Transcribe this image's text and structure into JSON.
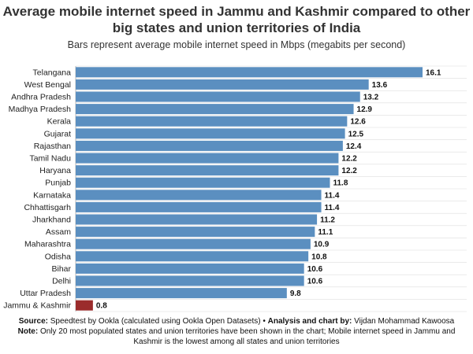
{
  "title": "Average mobile internet speed in Jammu and Kashmir compared to other big states and union territories of India",
  "subtitle": "Bars represent average mobile internet speed in Mbps (megabits per second)",
  "footer": {
    "source_label": "Source:",
    "source_text": "Speedtest by Ookla (calculated using Ookla Open Datasets) • ",
    "analysis_label": "Analysis and chart by:",
    "analysis_text": "Vijdan Mohammad Kawoosa",
    "note_label": "Note:",
    "note_text": "Only 20 most populated states and union territories have been shown in the chart; Mobile internet speed in Jammu and Kashmir is the lowest among all states and union territories"
  },
  "colors": {
    "bar": "#5b8fc0",
    "highlight": "#9b2c2c",
    "grid": "#dddddd"
  },
  "chart_data": {
    "type": "bar",
    "orientation": "horizontal",
    "categories": [
      "Telangana",
      "West Bengal",
      "Andhra Pradesh",
      "Madhya Pradesh",
      "Kerala",
      "Gujarat",
      "Rajasthan",
      "Tamil Nadu",
      "Haryana",
      "Punjab",
      "Karnataka",
      "Chhattisgarh",
      "Jharkhand",
      "Assam",
      "Maharashtra",
      "Odisha",
      "Bihar",
      "Delhi",
      "Uttar Pradesh",
      "Jammu & Kashmir"
    ],
    "values": [
      16.1,
      13.6,
      13.2,
      12.9,
      12.6,
      12.5,
      12.4,
      12.2,
      12.2,
      11.8,
      11.4,
      11.4,
      11.2,
      11.1,
      10.9,
      10.8,
      10.6,
      10.6,
      9.8,
      0.8
    ],
    "value_labels": [
      "16.1",
      "13.6",
      "13.2",
      "12.9",
      "12.6",
      "12.5",
      "12.4",
      "12.2",
      "12.2",
      "11.8",
      "11.4",
      "11.4",
      "11.2",
      "11.1",
      "10.9",
      "10.8",
      "10.6",
      "10.6",
      "9.8",
      "0.8"
    ],
    "highlight": "Jammu & Kashmir",
    "title": "Average mobile internet speed in Jammu and Kashmir compared to other big states and union territories of India",
    "xlabel": "",
    "ylabel": "",
    "xlim": [
      0,
      16.1
    ],
    "grid": true
  }
}
